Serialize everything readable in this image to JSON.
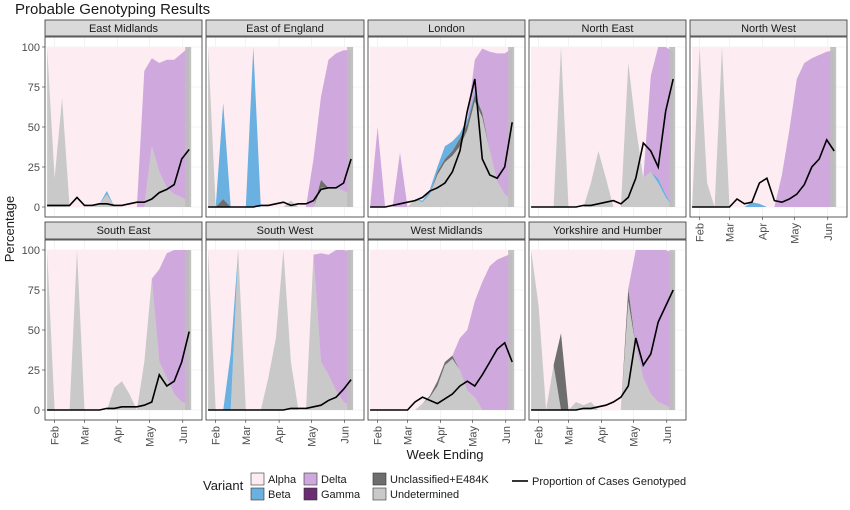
{
  "chart_data": {
    "type": "area",
    "title": "Probable Genotyping Results",
    "xlabel": "Week Ending",
    "ylabel": "Percentage",
    "ylim": [
      0,
      100
    ],
    "y_ticks": [
      0,
      25,
      50,
      75,
      100
    ],
    "x_tick_labels": [
      "Feb",
      "Mar",
      "Apr",
      "May",
      "Jun"
    ],
    "x_range": [
      "2021-01-23",
      "2021-06-19"
    ],
    "legend": {
      "position": "bottom",
      "fill_title": "Variant",
      "fill_entries": [
        {
          "name": "Alpha",
          "color": "#fdecf2"
        },
        {
          "name": "Beta",
          "color": "#6ab0e0"
        },
        {
          "name": "Delta",
          "color": "#cfa8de"
        },
        {
          "name": "Gamma",
          "color": "#6a2d72"
        },
        {
          "name": "Unclassified+E484K",
          "color": "#6e6e6e"
        },
        {
          "name": "Undetermined",
          "color": "#c9c9c9"
        }
      ],
      "line_entry": "Proportion of Cases Genotyped"
    },
    "panels": [
      {
        "name": "East Midlands",
        "first_date": "2021-01-25",
        "undetermined": [
          100,
          18,
          68,
          0,
          0,
          0,
          0,
          2,
          8,
          0,
          0,
          0,
          0,
          0,
          38,
          22,
          12,
          8,
          6,
          3
        ],
        "beta": [
          0,
          0,
          0,
          0,
          0,
          0,
          0,
          0,
          2,
          0,
          0,
          0,
          0,
          0,
          0,
          0,
          0,
          0,
          0,
          0
        ],
        "delta": [
          0,
          0,
          0,
          0,
          0,
          0,
          0,
          0,
          0,
          0,
          0,
          0,
          0,
          85,
          55,
          68,
          80,
          84,
          90,
          97
        ],
        "proportion": [
          1,
          1,
          1,
          1,
          6,
          1,
          1,
          2,
          2,
          1,
          1,
          2,
          3,
          3,
          5,
          9,
          11,
          14,
          30,
          36
        ]
      },
      {
        "name": "East of England",
        "first_date": "2021-01-25",
        "undetermined": [
          100,
          0,
          0,
          0,
          0,
          0,
          0,
          0,
          0,
          0,
          0,
          4,
          0,
          0,
          0,
          12,
          12,
          12,
          10,
          8
        ],
        "unclassified": [
          0,
          0,
          5,
          0,
          0,
          0,
          0,
          0,
          0,
          0,
          0,
          0,
          0,
          0,
          0,
          5,
          0,
          0,
          0,
          0
        ],
        "beta": [
          0,
          0,
          60,
          0,
          0,
          0,
          100,
          0,
          0,
          0,
          0,
          0,
          0,
          0,
          0,
          0,
          0,
          0,
          0,
          0
        ],
        "delta": [
          0,
          0,
          0,
          0,
          0,
          0,
          0,
          0,
          0,
          0,
          0,
          0,
          0,
          0,
          30,
          52,
          80,
          84,
          88,
          90
        ],
        "proportion": [
          0,
          0,
          0,
          0,
          0,
          0,
          0,
          1,
          1,
          2,
          3,
          1,
          2,
          2,
          4,
          11,
          12,
          12,
          15,
          30
        ]
      },
      {
        "name": "London",
        "first_date": "2021-01-25",
        "undetermined": [
          0,
          0,
          0,
          0,
          0,
          0,
          5,
          3,
          8,
          20,
          28,
          32,
          38,
          48,
          66,
          56,
          35,
          16,
          8,
          4
        ],
        "unclassified": [
          0,
          0,
          0,
          0,
          0,
          0,
          0,
          0,
          0,
          2,
          2,
          3,
          5,
          4,
          4,
          3,
          0,
          0,
          0,
          0
        ],
        "beta": [
          0,
          0,
          0,
          0,
          0,
          0,
          0,
          1,
          3,
          3,
          8,
          6,
          3,
          3,
          2,
          0,
          0,
          0,
          0,
          0
        ],
        "delta": [
          0,
          50,
          0,
          0,
          34,
          0,
          0,
          0,
          0,
          0,
          0,
          0,
          0,
          0,
          20,
          40,
          62,
          80,
          88,
          95
        ],
        "proportion": [
          0,
          0,
          0,
          1,
          2,
          3,
          4,
          6,
          10,
          12,
          15,
          22,
          35,
          60,
          80,
          30,
          20,
          18,
          25,
          53
        ]
      },
      {
        "name": "North East",
        "first_date": "2021-01-25",
        "undetermined": [
          0,
          0,
          0,
          0,
          100,
          0,
          0,
          0,
          15,
          35,
          18,
          0,
          0,
          90,
          50,
          18,
          22,
          15,
          6,
          0
        ],
        "beta": [
          0,
          0,
          0,
          0,
          0,
          0,
          0,
          0,
          0,
          0,
          0,
          0,
          0,
          0,
          0,
          0,
          0,
          3,
          2,
          0
        ],
        "delta": [
          0,
          0,
          0,
          0,
          0,
          0,
          0,
          0,
          0,
          0,
          0,
          0,
          0,
          0,
          0,
          0,
          60,
          85,
          92,
          97
        ],
        "proportion": [
          0,
          0,
          0,
          0,
          0,
          0,
          0,
          1,
          1,
          2,
          3,
          4,
          2,
          6,
          18,
          40,
          35,
          25,
          60,
          80
        ]
      },
      {
        "name": "North West",
        "first_date": "2021-01-25",
        "undetermined": [
          0,
          100,
          15,
          0,
          100,
          0,
          0,
          0,
          0,
          0,
          0,
          0,
          0,
          0,
          0,
          0,
          0,
          0,
          0,
          0
        ],
        "unclassified": [
          0,
          0,
          0,
          0,
          20,
          0,
          0,
          0,
          0,
          0,
          0,
          0,
          0,
          0,
          0,
          0,
          0,
          0,
          0,
          0
        ],
        "beta": [
          0,
          0,
          0,
          0,
          0,
          0,
          0,
          0,
          3,
          2,
          0,
          0,
          0,
          0,
          0,
          0,
          0,
          0,
          0,
          0
        ],
        "delta": [
          0,
          0,
          0,
          0,
          0,
          0,
          0,
          0,
          0,
          0,
          0,
          0,
          20,
          48,
          80,
          90,
          93,
          95,
          97,
          98
        ],
        "proportion": [
          0,
          0,
          0,
          0,
          0,
          0,
          5,
          2,
          3,
          15,
          18,
          4,
          3,
          5,
          8,
          14,
          25,
          30,
          42,
          35
        ]
      },
      {
        "name": "South East",
        "first_date": "2021-01-25",
        "undetermined": [
          100,
          0,
          0,
          0,
          100,
          0,
          0,
          0,
          0,
          14,
          18,
          10,
          0,
          30,
          82,
          30,
          20,
          10,
          5,
          3
        ],
        "delta": [
          0,
          0,
          0,
          0,
          0,
          0,
          0,
          0,
          0,
          0,
          0,
          0,
          0,
          0,
          0,
          58,
          78,
          90,
          95,
          97
        ],
        "proportion": [
          0,
          0,
          0,
          0,
          0,
          0,
          0,
          0,
          1,
          1,
          2,
          2,
          2,
          3,
          5,
          22,
          15,
          18,
          30,
          49
        ]
      },
      {
        "name": "South West",
        "first_date": "2021-01-25",
        "undetermined": [
          100,
          0,
          0,
          0,
          100,
          0,
          0,
          0,
          20,
          45,
          100,
          30,
          0,
          0,
          97,
          30,
          22,
          12,
          5,
          2
        ],
        "beta": [
          0,
          0,
          0,
          35,
          0,
          0,
          0,
          0,
          0,
          0,
          0,
          0,
          0,
          0,
          0,
          0,
          0,
          0,
          0,
          0
        ],
        "delta": [
          0,
          0,
          0,
          0,
          0,
          0,
          0,
          0,
          0,
          0,
          0,
          0,
          0,
          0,
          0,
          68,
          75,
          88,
          95,
          97
        ],
        "proportion": [
          0,
          0,
          0,
          0,
          0,
          0,
          0,
          0,
          0,
          0,
          0,
          1,
          1,
          1,
          2,
          3,
          6,
          8,
          13,
          19
        ]
      },
      {
        "name": "West Midlands",
        "first_date": "2021-01-25",
        "undetermined": [
          0,
          0,
          0,
          0,
          0,
          0,
          0,
          4,
          8,
          15,
          28,
          32,
          25,
          12,
          8,
          0,
          0,
          0,
          0,
          0
        ],
        "unclassified": [
          0,
          0,
          0,
          0,
          0,
          0,
          0,
          0,
          1,
          3,
          2,
          2,
          0,
          0,
          0,
          0,
          0,
          0,
          0,
          0
        ],
        "beta": [
          0,
          0,
          0,
          0,
          0,
          0,
          0,
          0,
          0,
          0,
          0,
          0,
          0,
          0,
          0,
          0,
          0,
          0,
          0,
          0
        ],
        "delta": [
          0,
          0,
          0,
          0,
          0,
          0,
          0,
          0,
          0,
          0,
          0,
          0,
          20,
          38,
          60,
          80,
          90,
          94,
          96,
          98
        ],
        "proportion": [
          0,
          0,
          0,
          0,
          0,
          0,
          5,
          8,
          6,
          4,
          7,
          10,
          15,
          18,
          15,
          22,
          30,
          38,
          42,
          30
        ]
      },
      {
        "name": "Yorkshire and Humber",
        "first_date": "2021-01-25",
        "undetermined": [
          100,
          65,
          0,
          28,
          0,
          0,
          5,
          3,
          5,
          0,
          0,
          0,
          0,
          68,
          40,
          20,
          10,
          5,
          3,
          0
        ],
        "unclassified": [
          0,
          0,
          0,
          0,
          48,
          0,
          0,
          0,
          0,
          0,
          0,
          0,
          0,
          8,
          0,
          0,
          0,
          0,
          0,
          0
        ],
        "delta": [
          0,
          0,
          0,
          0,
          0,
          0,
          0,
          0,
          0,
          0,
          0,
          0,
          0,
          0,
          60,
          80,
          90,
          95,
          97,
          98
        ],
        "proportion": [
          0,
          0,
          0,
          0,
          0,
          0,
          0,
          1,
          1,
          2,
          3,
          5,
          8,
          15,
          45,
          28,
          35,
          55,
          65,
          75
        ]
      }
    ]
  }
}
